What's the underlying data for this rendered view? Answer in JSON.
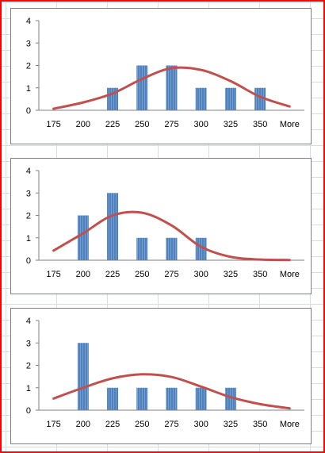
{
  "colors": {
    "bar_fill": "#4f81bd",
    "bar_stripe": "#9dbbe3",
    "curve": "#c0504d",
    "selection_border": "#ff0000",
    "axis": "#808080"
  },
  "chart_data": [
    {
      "type": "bar",
      "categories": [
        "175",
        "200",
        "225",
        "250",
        "275",
        "300",
        "325",
        "350",
        "More"
      ],
      "values": [
        0,
        0,
        1,
        2,
        2,
        1,
        1,
        1,
        0
      ],
      "curve": [
        0.07,
        0.35,
        0.75,
        1.4,
        1.88,
        1.8,
        1.3,
        0.6,
        0.17
      ],
      "ylim": [
        0,
        4
      ],
      "yticks": [
        "0",
        "1",
        "2",
        "3",
        "4"
      ],
      "grid": false,
      "legend": "none"
    },
    {
      "type": "bar",
      "categories": [
        "175",
        "200",
        "225",
        "250",
        "275",
        "300",
        "325",
        "350",
        "More"
      ],
      "values": [
        0,
        2,
        3,
        1,
        1,
        1,
        0,
        0,
        0
      ],
      "curve": [
        0.43,
        1.2,
        2.0,
        2.12,
        1.55,
        0.6,
        0.15,
        0.03,
        0.01
      ],
      "ylim": [
        0,
        4
      ],
      "yticks": [
        "0",
        "1",
        "2",
        "3",
        "4"
      ],
      "grid": false,
      "legend": "none"
    },
    {
      "type": "bar",
      "categories": [
        "175",
        "200",
        "225",
        "250",
        "275",
        "300",
        "325",
        "350",
        "More"
      ],
      "values": [
        0,
        3,
        1,
        1,
        1,
        1,
        1,
        0,
        0
      ],
      "curve": [
        0.52,
        1.0,
        1.42,
        1.6,
        1.48,
        1.05,
        0.58,
        0.27,
        0.08
      ],
      "ylim": [
        0,
        4
      ],
      "yticks": [
        "0",
        "1",
        "2",
        "3",
        "4"
      ],
      "grid": false,
      "legend": "none"
    }
  ]
}
